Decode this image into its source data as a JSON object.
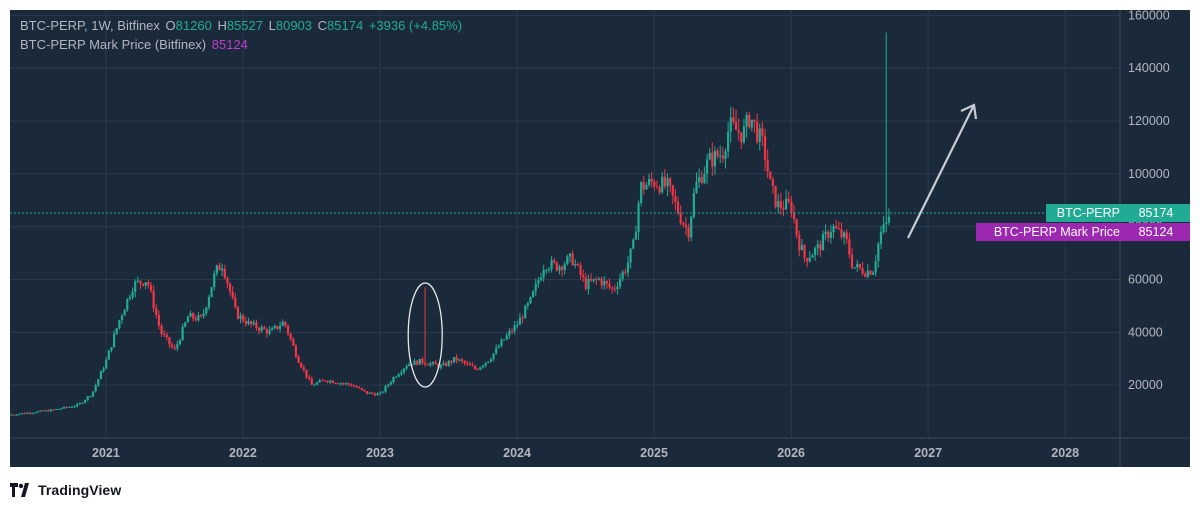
{
  "legend": {
    "symbol_line": "BTC-PERP, 1W, Bitfinex",
    "o_label": "O",
    "o_value": "81260",
    "h_label": "H",
    "h_value": "85527",
    "l_label": "L",
    "l_value": "80903",
    "c_label": "C",
    "c_value": "85174",
    "change": "+3936 (+4.85%)",
    "mark_label": "BTC-PERP Mark Price (Bitfinex)",
    "mark_value": "85124"
  },
  "price_tags": {
    "last_name": "BTC-PERP",
    "last_value": "85174",
    "mark_name": "BTC-PERP Mark Price",
    "mark_value": "85124"
  },
  "footer": {
    "brand": "TradingView"
  },
  "colors": {
    "background": "#1b2a3b",
    "up": "#22ab94",
    "down": "#f23645",
    "mark": "#9c27b0",
    "grid": "#2a3a4c",
    "axis_text": "#b2b5be"
  },
  "chart_data": {
    "type": "candlestick",
    "interval": "1W",
    "x_axis": {
      "ticks": [
        "2021",
        "2022",
        "2023",
        "2024",
        "2025",
        "2026",
        "2027",
        "2028"
      ],
      "range": [
        2020.3,
        2028.4
      ]
    },
    "y_axis": {
      "ticks": [
        "20000",
        "40000",
        "60000",
        "80000",
        "100000",
        "120000",
        "140000",
        "160000"
      ],
      "range": [
        0,
        162000
      ],
      "position": "right"
    },
    "grid": true,
    "last_price": 85174,
    "mark_price": 85124,
    "spikes": [
      {
        "x": 2023.33,
        "high": 57000,
        "low": 27000,
        "direction": "down"
      },
      {
        "x": 2026.7,
        "high": 153500,
        "low": 82000,
        "direction": "up"
      }
    ],
    "annotations": [
      "ellipse around 2023 spike",
      "arrow pointing up toward 2027"
    ],
    "price_path": [
      [
        2020.3,
        8800
      ],
      [
        2020.6,
        10500
      ],
      [
        2020.8,
        12500
      ],
      [
        2020.9,
        17000
      ],
      [
        2021.0,
        29000
      ],
      [
        2021.1,
        45000
      ],
      [
        2021.2,
        58000
      ],
      [
        2021.3,
        60000
      ],
      [
        2021.4,
        40000
      ],
      [
        2021.5,
        33000
      ],
      [
        2021.6,
        46000
      ],
      [
        2021.7,
        45000
      ],
      [
        2021.8,
        63000
      ],
      [
        2021.85,
        66000
      ],
      [
        2021.95,
        47000
      ],
      [
        2022.05,
        43000
      ],
      [
        2022.2,
        40000
      ],
      [
        2022.3,
        44000
      ],
      [
        2022.4,
        30000
      ],
      [
        2022.5,
        20000
      ],
      [
        2022.6,
        22000
      ],
      [
        2022.8,
        20000
      ],
      [
        2022.9,
        17000
      ],
      [
        2023.0,
        16500
      ],
      [
        2023.1,
        23000
      ],
      [
        2023.2,
        28000
      ],
      [
        2023.3,
        29000
      ],
      [
        2023.45,
        27000
      ],
      [
        2023.55,
        30000
      ],
      [
        2023.7,
        26000
      ],
      [
        2023.8,
        30000
      ],
      [
        2023.9,
        37000
      ],
      [
        2024.0,
        43000
      ],
      [
        2024.1,
        52000
      ],
      [
        2024.2,
        66000
      ],
      [
        2024.3,
        65000
      ],
      [
        2024.4,
        68000
      ],
      [
        2024.5,
        58000
      ],
      [
        2024.6,
        60000
      ],
      [
        2024.7,
        56000
      ],
      [
        2024.8,
        65000
      ],
      [
        2024.85,
        73000
      ],
      [
        2024.9,
        95000
      ],
      [
        2025.0,
        97000
      ],
      [
        2025.1,
        95000
      ],
      [
        2025.2,
        83000
      ],
      [
        2025.25,
        78000
      ],
      [
        2025.3,
        95000
      ],
      [
        2025.4,
        105000
      ],
      [
        2025.5,
        108000
      ],
      [
        2025.55,
        118000
      ],
      [
        2025.65,
        115000
      ],
      [
        2025.7,
        122000
      ],
      [
        2025.8,
        110000
      ],
      [
        2025.85,
        95000
      ],
      [
        2025.9,
        88000
      ],
      [
        2026.0,
        88000
      ],
      [
        2026.05,
        75000
      ],
      [
        2026.1,
        68000
      ],
      [
        2026.2,
        72000
      ],
      [
        2026.3,
        80000
      ],
      [
        2026.4,
        75000
      ],
      [
        2026.45,
        65000
      ],
      [
        2026.55,
        63000
      ],
      [
        2026.6,
        64000
      ],
      [
        2026.65,
        77000
      ],
      [
        2026.7,
        81260
      ],
      [
        2026.72,
        85174
      ]
    ]
  }
}
